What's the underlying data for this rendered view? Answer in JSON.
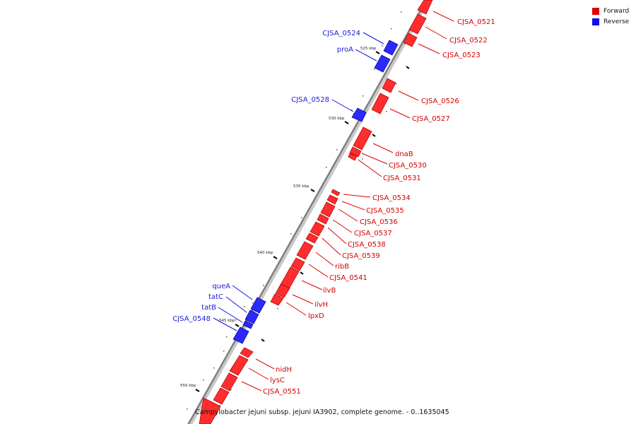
{
  "legend": {
    "forward": {
      "label": "Forward",
      "color": "#e00000"
    },
    "reverse": {
      "label": "Reverse",
      "color": "#1010e8"
    }
  },
  "footer": "Campylobacter jejuni subsp. jejuni IA3902, complete genome. - 0..1635045",
  "ticks": [
    "525 kbp",
    "530 kbp",
    "535 kbp",
    "540 kbp",
    "545 kbp",
    "550 kbp"
  ],
  "genes": {
    "forward": [
      "CJSA_0521",
      "CJSA_0522",
      "CJSA_0523",
      "CJSA_0526",
      "CJSA_0527",
      "dnaB",
      "CJSA_0530",
      "CJSA_0531",
      "CJSA_0534",
      "CJSA_0535",
      "CJSA_0536",
      "CJSA_0537",
      "CJSA_0538",
      "CJSA_0539",
      "ribB",
      "CJSA_0541",
      "ilvB",
      "ilvH",
      "lpxD",
      "nidH",
      "lysC",
      "CJSA_0551"
    ],
    "reverse": [
      "CJSA_0524",
      "proA",
      "CJSA_0528",
      "queA",
      "tatC",
      "tatB",
      "CJSA_0548"
    ]
  }
}
